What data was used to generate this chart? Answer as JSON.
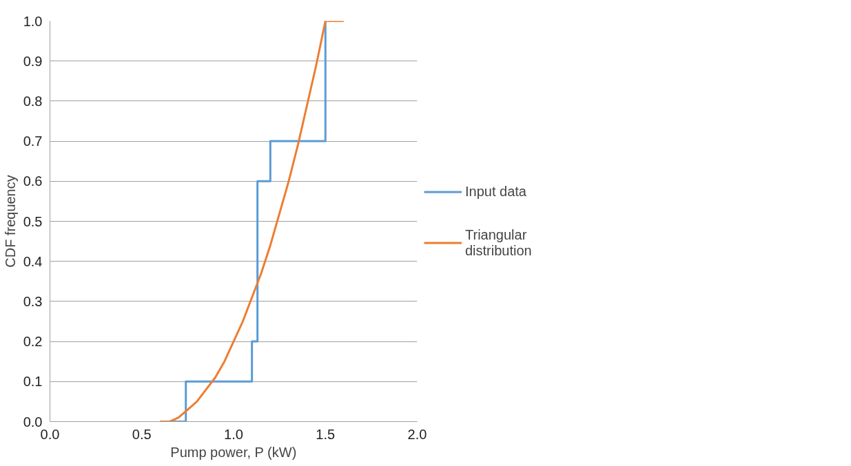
{
  "chart_data": {
    "type": "line",
    "xlabel": "Pump power, P (kW)",
    "ylabel": "CDF frequency",
    "xlim": [
      0,
      2.0
    ],
    "xticks": [
      {
        "value": 0,
        "label": "0.0"
      },
      0.5,
      {
        "value": 1,
        "label": "1.0"
      },
      1.5,
      {
        "value": 2,
        "label": "2.0"
      }
    ],
    "ylim": [
      0,
      1.0
    ],
    "yticks": [
      {
        "value": 0,
        "label": "0.0"
      },
      0.1,
      0.2,
      0.3,
      0.4,
      0.5,
      0.6,
      0.7,
      0.8,
      0.9,
      {
        "value": 1,
        "label": "1.0"
      }
    ],
    "grid": "y",
    "legend": "right",
    "series": [
      {
        "name": "Input data",
        "type": "step",
        "color": "#5b9bd5",
        "x": [
          0.6,
          0.74,
          1.1,
          1.13,
          1.2,
          1.5
        ],
        "values": [
          0,
          0.1,
          0.2,
          0.6,
          0.7,
          1.0
        ]
      },
      {
        "name": "Triangular distribution",
        "color": "#ed7d31",
        "x": [
          0.6,
          0.65,
          0.7,
          0.75,
          0.8,
          0.85,
          0.9,
          0.95,
          1.0,
          1.05,
          1.1,
          1.15,
          1.2,
          1.25,
          1.3,
          1.35,
          1.4,
          1.45,
          1.5,
          1.6
        ],
        "values": [
          0,
          0.0,
          0.01,
          0.03,
          0.05,
          0.08,
          0.11,
          0.15,
          0.2,
          0.25,
          0.31,
          0.37,
          0.44,
          0.52,
          0.6,
          0.69,
          0.79,
          0.89,
          1.0,
          1.0
        ]
      }
    ]
  }
}
